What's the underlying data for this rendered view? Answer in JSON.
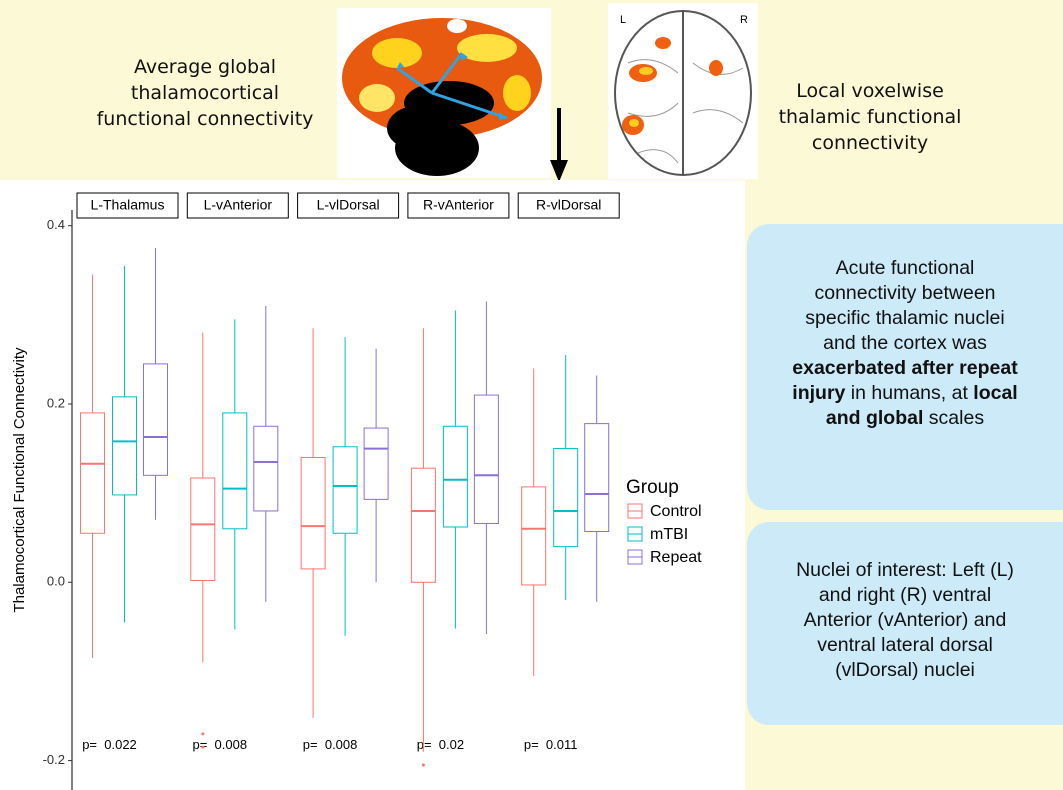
{
  "top_left_caption": [
    "Average global",
    "thalamocortical",
    "functional connectivity"
  ],
  "top_right_caption": [
    "Local voxelwise",
    "thalamic functional",
    "connectivity"
  ],
  "brain_labels": [
    "L",
    "R"
  ],
  "info_panels": [
    {
      "lines": [
        [
          "Acute functional"
        ],
        [
          "connectivity between"
        ],
        [
          "specific thalamic nuclei"
        ],
        [
          "and the cortex was"
        ],
        [
          "exacerbated after repeat"
        ],
        [
          "injury",
          " in humans, at ",
          "local"
        ],
        [
          "and global",
          " scales"
        ]
      ]
    },
    {
      "lines": [
        [
          "Nuclei of interest: Left (L)"
        ],
        [
          "and right (R) ventral"
        ],
        [
          "Anterior (vAnterior) and"
        ],
        [
          "ventral lateral dorsal"
        ],
        [
          "(vlDorsal) nuclei"
        ]
      ]
    }
  ],
  "chart_data": {
    "type": "boxplot",
    "y_label": "Thalamocortical Functional Connectivity",
    "ylim": [
      -0.233,
      0.412
    ],
    "yticks": [
      -0.2,
      {
        "value": 0,
        "label": "0.0"
      },
      0.2,
      0.4
    ],
    "legend_title": "Group",
    "series": [
      {
        "name": "Control",
        "color": "#f8766d"
      },
      {
        "name": "mTBI",
        "color": "#00bfc4"
      },
      {
        "name": "Repeat",
        "color": "#8c6fd8"
      }
    ],
    "facets": [
      {
        "label": "L-Thalamus",
        "p_label": "p=  0.022",
        "boxes": [
          {
            "whislo": -0.085,
            "q1": 0.055,
            "med": 0.133,
            "q3": 0.19,
            "whishi": 0.345
          },
          {
            "whislo": -0.045,
            "q1": 0.098,
            "med": 0.158,
            "q3": 0.208,
            "whishi": 0.355
          },
          {
            "whislo": 0.07,
            "q1": 0.12,
            "med": 0.163,
            "q3": 0.245,
            "whishi": 0.375
          }
        ]
      },
      {
        "label": "L-vAnterior",
        "p_label": "p=  0.008",
        "boxes": [
          {
            "whislo": -0.09,
            "q1": 0.002,
            "med": 0.065,
            "q3": 0.117,
            "whishi": 0.28,
            "outliers": [
              -0.17,
              -0.185
            ]
          },
          {
            "whislo": -0.053,
            "q1": 0.06,
            "med": 0.105,
            "q3": 0.19,
            "whishi": 0.295
          },
          {
            "whislo": -0.022,
            "q1": 0.08,
            "med": 0.135,
            "q3": 0.175,
            "whishi": 0.31
          }
        ]
      },
      {
        "label": "L-vlDorsal",
        "p_label": "p=  0.008",
        "boxes": [
          {
            "whislo": -0.152,
            "q1": 0.015,
            "med": 0.063,
            "q3": 0.14,
            "whishi": 0.285
          },
          {
            "whislo": -0.06,
            "q1": 0.055,
            "med": 0.108,
            "q3": 0.152,
            "whishi": 0.275
          },
          {
            "whislo": 0.0,
            "q1": 0.093,
            "med": 0.15,
            "q3": 0.173,
            "whishi": 0.262
          }
        ]
      },
      {
        "label": "R-vAnterior",
        "p_label": "p=  0.02",
        "boxes": [
          {
            "whislo": -0.19,
            "q1": 0.0,
            "med": 0.08,
            "q3": 0.128,
            "whishi": 0.285,
            "outliers": [
              -0.205
            ]
          },
          {
            "whislo": -0.052,
            "q1": 0.062,
            "med": 0.115,
            "q3": 0.175,
            "whishi": 0.305
          },
          {
            "whislo": -0.058,
            "q1": 0.066,
            "med": 0.12,
            "q3": 0.21,
            "whishi": 0.315
          }
        ]
      },
      {
        "label": "R-vlDorsal",
        "p_label": "p=  0.011",
        "boxes": [
          {
            "whislo": -0.105,
            "q1": -0.003,
            "med": 0.06,
            "q3": 0.107,
            "whishi": 0.24
          },
          {
            "whislo": -0.02,
            "q1": 0.04,
            "med": 0.08,
            "q3": 0.15,
            "whishi": 0.255
          },
          {
            "whislo": -0.022,
            "q1": 0.057,
            "med": 0.099,
            "q3": 0.178,
            "whishi": 0.232
          }
        ]
      }
    ]
  }
}
